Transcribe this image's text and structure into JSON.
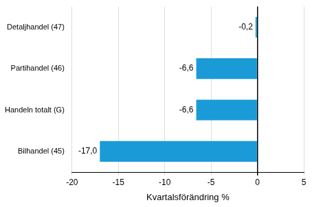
{
  "chart_data": {
    "type": "bar",
    "orientation": "horizontal",
    "categories": [
      "Detaljhandel (47)",
      "Partihandel (46)",
      "Handeln totalt (G)",
      "Bilhandel (45)"
    ],
    "values": [
      -0.2,
      -6.6,
      -6.6,
      -17.0
    ],
    "value_labels": [
      "-0,2",
      "-6,6",
      "-6,6",
      "-17,0"
    ],
    "data_labels": true,
    "color": "#1a9bd7",
    "x_label": "Kvartalsförändring %",
    "xlim": [
      -20,
      5
    ],
    "xticks": [
      -20,
      -15,
      -10,
      -5,
      0,
      5
    ],
    "grid": true
  }
}
